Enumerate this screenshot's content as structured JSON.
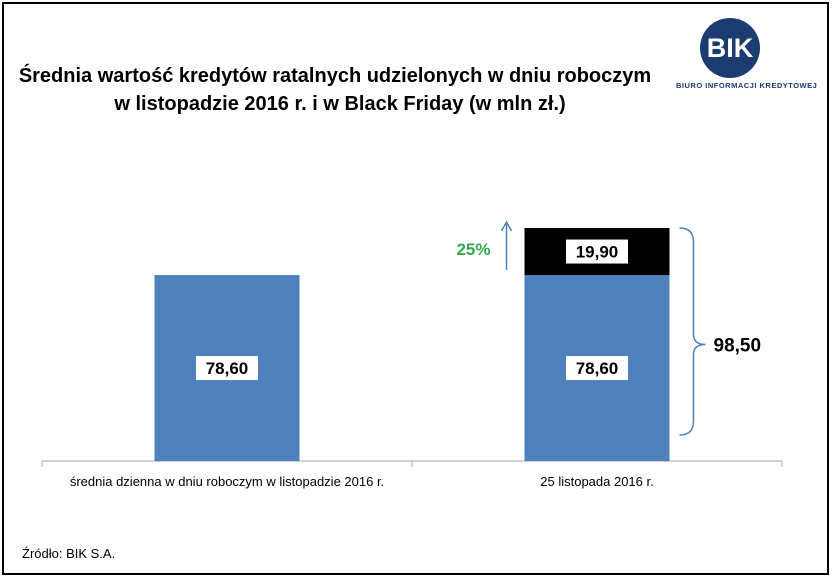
{
  "title_line1": "Średnia wartość kredytów ratalnych udzielonych w dniu roboczym",
  "title_line2": "w listopadzie 2016 r. i w Black Friday (w mln zł.)",
  "logo": {
    "mark": "BIK",
    "name": "BIURO INFORMACJI KREDYTOWEJ"
  },
  "source": "Źródło: BIK S.A.",
  "colors": {
    "base": "#4f81bd",
    "extra": "#000000",
    "increase": "#2eaa4a",
    "bracket": "#4f81bd"
  },
  "chart_data": {
    "type": "bar",
    "stacked": true,
    "categories": [
      "średnia dzienna w dniu roboczym w listopadzie 2016 r.",
      "25 listopada 2016 r."
    ],
    "series": [
      {
        "values": [
          78.6,
          78.6
        ],
        "labels": [
          "78,60",
          "78,60"
        ]
      },
      {
        "values": [
          null,
          19.9
        ],
        "labels": [
          "",
          "19,90"
        ]
      }
    ],
    "total": {
      "category_index": 1,
      "value": 98.5,
      "label": "98,50"
    },
    "increase": {
      "category_index": 1,
      "label": "25%"
    },
    "ylim": [
      0,
      100
    ],
    "grid": false,
    "legend": "none"
  }
}
